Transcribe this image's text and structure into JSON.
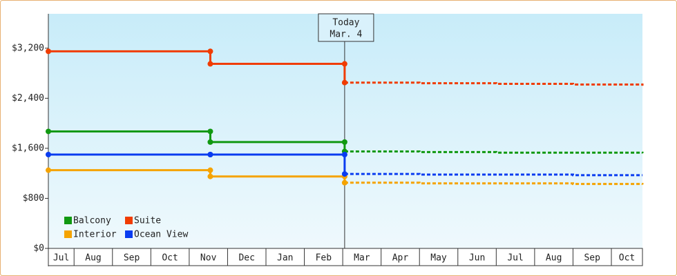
{
  "chart_data": {
    "type": "step-line",
    "categories": [
      "Jul",
      "Aug",
      "Sep",
      "Oct",
      "Nov",
      "Dec",
      "Jan",
      "Feb",
      "Mar",
      "Apr",
      "May",
      "Jun",
      "Jul",
      "Aug",
      "Sep",
      "Oct"
    ],
    "xlim": [
      0.33,
      15.81
    ],
    "xticks": [
      1,
      2,
      3,
      4,
      5,
      6,
      7,
      8,
      9,
      10,
      11,
      12,
      13,
      14,
      15
    ],
    "ylim": [
      0,
      3750
    ],
    "yticks": [
      {
        "value": 0,
        "label": "$0"
      },
      {
        "value": 800,
        "label": "$800"
      },
      {
        "value": 1600,
        "label": "$1,600"
      },
      {
        "value": 2400,
        "label": "$2,400"
      },
      {
        "value": 3200,
        "label": "$3,200"
      }
    ],
    "annotation": {
      "lines": [
        "Today",
        "Mar. 4"
      ],
      "x": 8.05
    },
    "legend": "bottom-left",
    "series": [
      {
        "name": "Balcony",
        "color": "#119911",
        "x": [
          0.33,
          4.55
        ],
        "values": [
          1870,
          1700
        ],
        "forecast": {
          "x": [
            8.05,
            10,
            12,
            14,
            15.81
          ],
          "values": [
            1550,
            1540,
            1530,
            1530,
            1520
          ]
        }
      },
      {
        "name": "Suite",
        "color": "#f03c00",
        "x": [
          0.33,
          4.55
        ],
        "values": [
          3150,
          2950
        ],
        "forecast": {
          "x": [
            8.05,
            10,
            12,
            14,
            15.81
          ],
          "values": [
            2650,
            2640,
            2630,
            2620,
            2600
          ]
        }
      },
      {
        "name": "Interior",
        "color": "#f5a300",
        "x": [
          0.33,
          4.55
        ],
        "values": [
          1250,
          1150
        ],
        "forecast": {
          "x": [
            8.05,
            10,
            12,
            14,
            15.81
          ],
          "values": [
            1050,
            1040,
            1040,
            1030,
            1020
          ]
        }
      },
      {
        "name": "Ocean View",
        "color": "#0a3cf0",
        "x": [
          0.33,
          4.55
        ],
        "values": [
          1500,
          1500
        ],
        "forecast": {
          "x": [
            8.05,
            10,
            12,
            14,
            15.81
          ],
          "values": [
            1190,
            1180,
            1180,
            1170,
            1170
          ]
        }
      }
    ]
  }
}
